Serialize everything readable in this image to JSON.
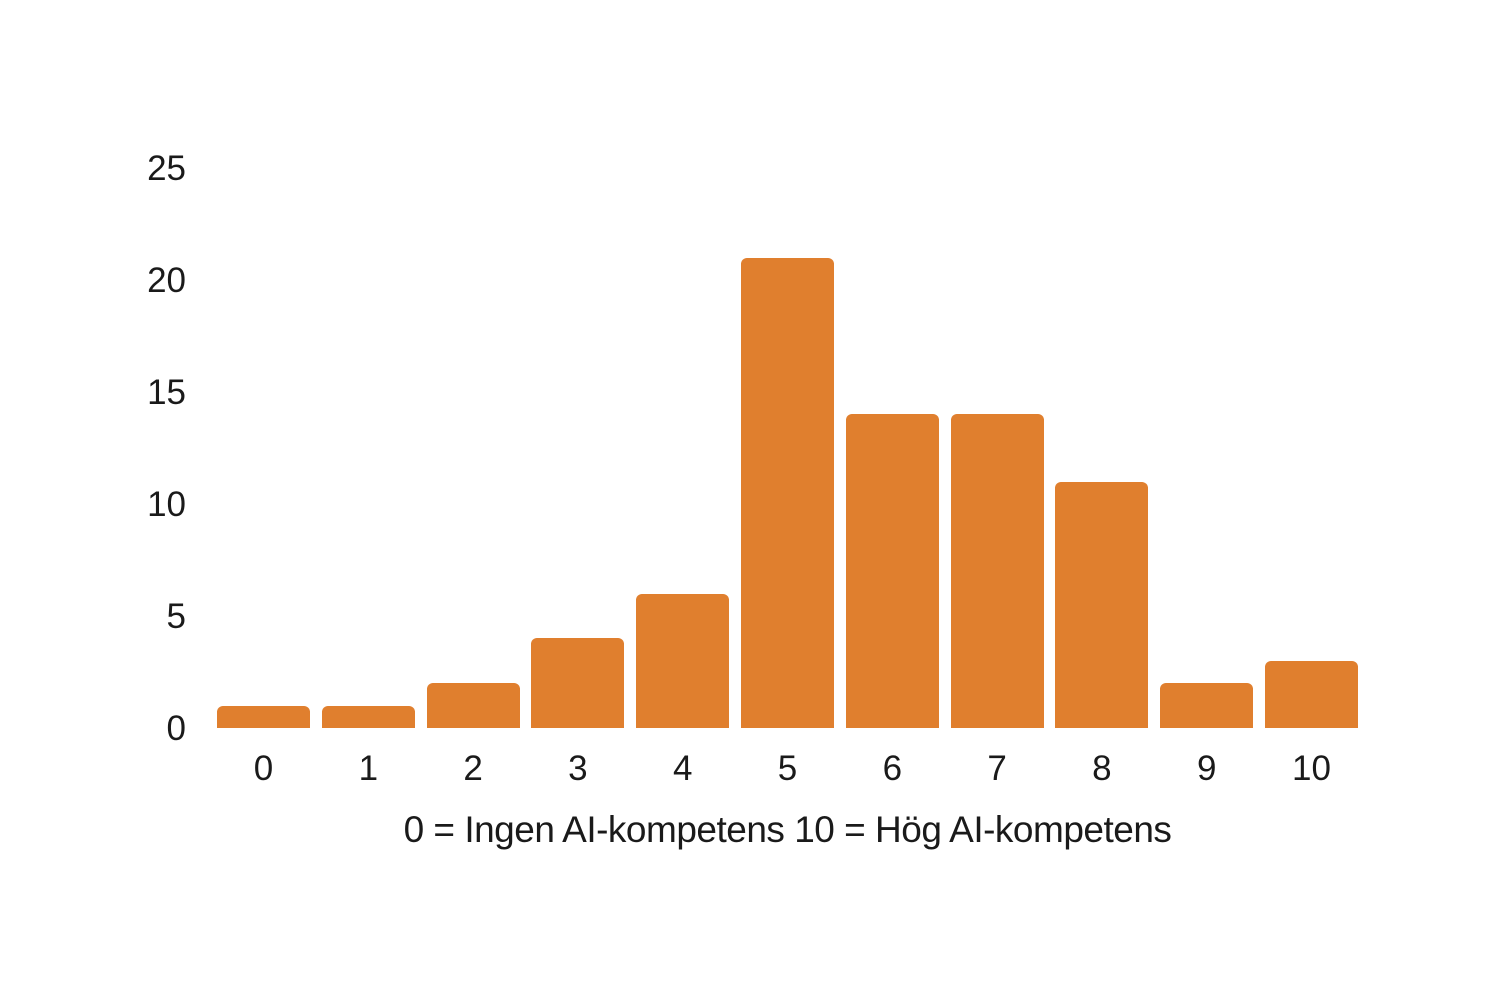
{
  "chart_data": {
    "type": "bar",
    "title": "",
    "categories": [
      "0",
      "1",
      "2",
      "3",
      "4",
      "5",
      "6",
      "7",
      "8",
      "9",
      "10"
    ],
    "values": [
      1,
      1,
      2,
      4,
      6,
      21,
      14,
      14,
      11,
      2,
      3
    ],
    "xlabel": "0 = Ingen AI-kompetens 10 = Hög AI-kompetens",
    "ylabel": "",
    "ylim": [
      0,
      25
    ],
    "yticks": [
      "0",
      "5",
      "10",
      "15",
      "20",
      "25"
    ],
    "grid": false,
    "legend": null,
    "bar_color": "#E07F2E"
  }
}
